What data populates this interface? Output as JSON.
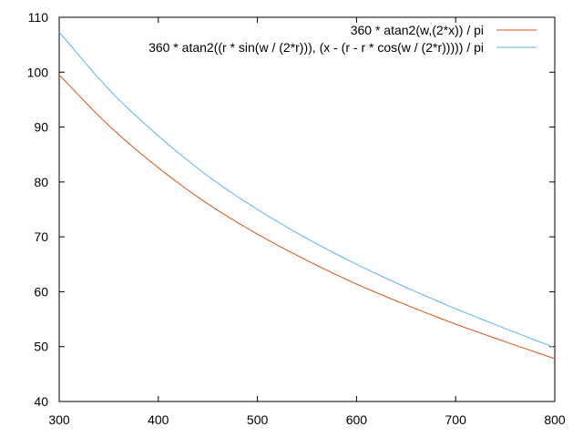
{
  "chart_data": {
    "type": "line",
    "title": "",
    "xlabel": "",
    "ylabel": "",
    "xlim": [
      300,
      800
    ],
    "ylim": [
      40,
      110
    ],
    "x_ticks": [
      "300",
      "400",
      "500",
      "600",
      "700",
      "800"
    ],
    "y_ticks": [
      "40",
      "50",
      "60",
      "70",
      "80",
      "90",
      "100",
      "110"
    ],
    "grid": false,
    "legend_position": "top-right",
    "series": [
      {
        "name": "360 * atan2(w,(2*x)) / pi",
        "color": "#d95319",
        "x": [
          300,
          350,
          400,
          450,
          500,
          550,
          600,
          650,
          700,
          750,
          800
        ],
        "y": [
          99.5,
          90.3,
          82.6,
          76.0,
          70.5,
          65.7,
          61.4,
          57.6,
          54.1,
          50.9,
          47.8
        ]
      },
      {
        "name": "360 * atan2((r * sin(w / (2*r))), (x - (r - r * cos(w / (2*r))))) / pi",
        "color": "#56b4e9",
        "x": [
          300,
          350,
          400,
          450,
          500,
          550,
          600,
          650,
          700,
          750,
          800
        ],
        "y": [
          107.3,
          96.9,
          88.4,
          81.1,
          75.0,
          69.7,
          65.0,
          60.8,
          56.9,
          53.3,
          49.8
        ]
      }
    ]
  }
}
